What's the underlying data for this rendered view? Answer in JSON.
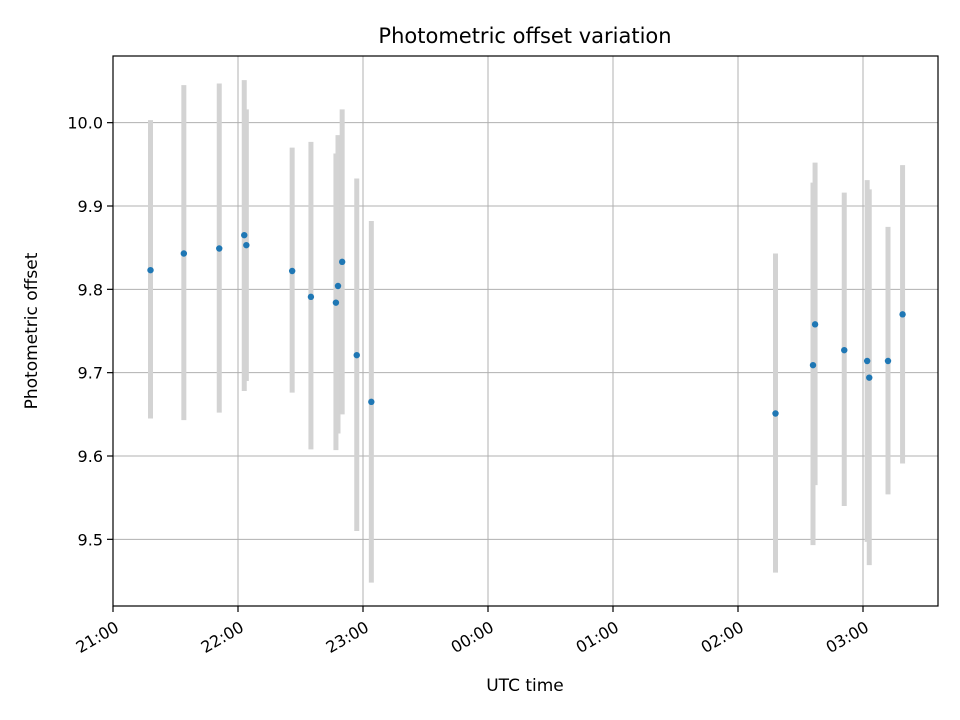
{
  "chart_data": {
    "type": "scatter",
    "title": "Photometric offset variation",
    "xlabel": "UTC time",
    "ylabel": "Photometric offset",
    "x_ticks": [
      "21:00",
      "22:00",
      "23:00",
      "00:00",
      "01:00",
      "02:00",
      "03:00"
    ],
    "y_ticks": [
      "9.5",
      "9.6",
      "9.7",
      "9.8",
      "9.9",
      "10.0"
    ],
    "xlim": [
      "21:00",
      "03:36"
    ],
    "ylim": [
      9.42,
      10.08
    ],
    "grid": true,
    "colors": {
      "point": "#1f77b4",
      "errorbar": "#d3d3d3",
      "grid": "#b0b0b0",
      "axis": "#000000"
    },
    "points": [
      {
        "x": "21:18",
        "y": 9.823,
        "yerr_low": 9.645,
        "yerr_high": 10.003
      },
      {
        "x": "21:34",
        "y": 9.843,
        "yerr_low": 9.643,
        "yerr_high": 10.045
      },
      {
        "x": "21:51",
        "y": 9.849,
        "yerr_low": 9.652,
        "yerr_high": 10.047
      },
      {
        "x": "22:03",
        "y": 9.865,
        "yerr_low": 9.678,
        "yerr_high": 10.051
      },
      {
        "x": "22:04",
        "y": 9.853,
        "yerr_low": 9.69,
        "yerr_high": 10.016
      },
      {
        "x": "22:26",
        "y": 9.822,
        "yerr_low": 9.676,
        "yerr_high": 9.97
      },
      {
        "x": "22:35",
        "y": 9.791,
        "yerr_low": 9.608,
        "yerr_high": 9.977
      },
      {
        "x": "22:47",
        "y": 9.784,
        "yerr_low": 9.607,
        "yerr_high": 9.963
      },
      {
        "x": "22:48",
        "y": 9.804,
        "yerr_low": 9.627,
        "yerr_high": 9.985
      },
      {
        "x": "22:50",
        "y": 9.833,
        "yerr_low": 9.65,
        "yerr_high": 10.016
      },
      {
        "x": "22:57",
        "y": 9.721,
        "yerr_low": 9.51,
        "yerr_high": 9.933
      },
      {
        "x": "23:04",
        "y": 9.665,
        "yerr_low": 9.448,
        "yerr_high": 9.882
      },
      {
        "x": "02:18",
        "y": 9.651,
        "yerr_low": 9.46,
        "yerr_high": 9.843
      },
      {
        "x": "02:36",
        "y": 9.709,
        "yerr_low": 9.493,
        "yerr_high": 9.928
      },
      {
        "x": "02:37",
        "y": 9.758,
        "yerr_low": 9.565,
        "yerr_high": 9.952
      },
      {
        "x": "02:51",
        "y": 9.727,
        "yerr_low": 9.54,
        "yerr_high": 9.916
      },
      {
        "x": "03:02",
        "y": 9.714,
        "yerr_low": 9.497,
        "yerr_high": 9.931
      },
      {
        "x": "03:03",
        "y": 9.694,
        "yerr_low": 9.469,
        "yerr_high": 9.92
      },
      {
        "x": "03:12",
        "y": 9.714,
        "yerr_low": 9.554,
        "yerr_high": 9.875
      },
      {
        "x": "03:19",
        "y": 9.77,
        "yerr_low": 9.591,
        "yerr_high": 9.949
      }
    ]
  }
}
